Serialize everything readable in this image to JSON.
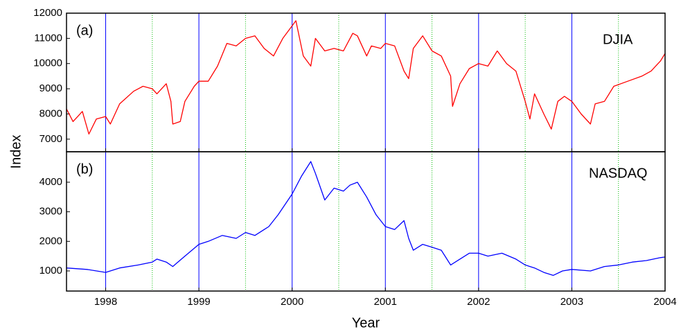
{
  "chart_data": [
    {
      "type": "line",
      "panel_label": "(a)",
      "ylabel": "Index",
      "xlim": [
        1997.58,
        2004
      ],
      "xticks": [
        1998,
        1999,
        2000,
        2001,
        2002,
        2003,
        2004
      ],
      "minor_xgrid": [
        1998.5,
        1999.5,
        2000.5,
        2001.5,
        2002.5,
        2003.5
      ],
      "grid_color": "#0000ff",
      "minor_grid_color": "#00bb00",
      "ylim": [
        6500,
        12000
      ],
      "yticks": [
        7000,
        8000,
        9000,
        10000,
        11000,
        12000
      ],
      "x": [
        1997.58,
        1997.65,
        1997.75,
        1997.82,
        1997.9,
        1998.0,
        1998.05,
        1998.15,
        1998.3,
        1998.4,
        1998.5,
        1998.55,
        1998.65,
        1998.7,
        1998.72,
        1998.8,
        1998.85,
        1998.95,
        1999.0,
        1999.1,
        1999.2,
        1999.3,
        1999.4,
        1999.5,
        1999.6,
        1999.7,
        1999.8,
        1999.9,
        2000.0,
        2000.04,
        2000.12,
        2000.2,
        2000.25,
        2000.35,
        2000.45,
        2000.55,
        2000.65,
        2000.7,
        2000.8,
        2000.85,
        2000.95,
        2001.0,
        2001.1,
        2001.2,
        2001.25,
        2001.3,
        2001.4,
        2001.5,
        2001.6,
        2001.7,
        2001.72,
        2001.8,
        2001.9,
        2002.0,
        2002.1,
        2002.2,
        2002.3,
        2002.4,
        2002.5,
        2002.55,
        2002.6,
        2002.7,
        2002.78,
        2002.85,
        2002.92,
        2003.0,
        2003.1,
        2003.2,
        2003.25,
        2003.35,
        2003.45,
        2003.6,
        2003.75,
        2003.85,
        2003.95,
        2004.0
      ],
      "series": [
        {
          "name": "DJIA",
          "color": "#ff0000",
          "values": [
            8200,
            7700,
            8100,
            7200,
            7800,
            7900,
            7600,
            8400,
            8900,
            9100,
            9000,
            8800,
            9200,
            8500,
            7600,
            7700,
            8500,
            9100,
            9300,
            9300,
            9900,
            10800,
            10700,
            11000,
            11100,
            10600,
            10300,
            11000,
            11500,
            11700,
            10300,
            9900,
            11000,
            10500,
            10600,
            10500,
            11200,
            11100,
            10300,
            10700,
            10600,
            10800,
            10700,
            9700,
            9400,
            10600,
            11100,
            10500,
            10300,
            9500,
            8300,
            9200,
            9800,
            10000,
            9900,
            10500,
            10000,
            9700,
            8500,
            7800,
            8800,
            8000,
            7400,
            8500,
            8700,
            8500,
            8000,
            7600,
            8400,
            8500,
            9100,
            9300,
            9500,
            9700,
            10100,
            10400
          ]
        }
      ]
    },
    {
      "type": "line",
      "panel_label": "(b)",
      "xlabel": "Year",
      "xlim": [
        1997.58,
        2004
      ],
      "xticks": [
        1998,
        1999,
        2000,
        2001,
        2002,
        2003,
        2004
      ],
      "minor_xgrid": [
        1998.5,
        1999.5,
        2000.5,
        2001.5,
        2002.5,
        2003.5
      ],
      "grid_color": "#0000ff",
      "minor_grid_color": "#00bb00",
      "ylim": [
        320,
        5030
      ],
      "yticks": [
        1000,
        2000,
        3000,
        4000
      ],
      "x": [
        1997.58,
        1997.8,
        1998.0,
        1998.15,
        1998.35,
        1998.5,
        1998.55,
        1998.65,
        1998.72,
        1998.85,
        1999.0,
        1999.1,
        1999.25,
        1999.4,
        1999.5,
        1999.6,
        1999.75,
        1999.85,
        2000.0,
        2000.1,
        2000.2,
        2000.25,
        2000.35,
        2000.45,
        2000.55,
        2000.62,
        2000.7,
        2000.8,
        2000.9,
        2001.0,
        2001.1,
        2001.2,
        2001.25,
        2001.3,
        2001.4,
        2001.5,
        2001.6,
        2001.7,
        2001.8,
        2001.9,
        2002.0,
        2002.1,
        2002.25,
        2002.4,
        2002.5,
        2002.6,
        2002.7,
        2002.8,
        2002.9,
        2003.0,
        2003.2,
        2003.35,
        2003.5,
        2003.65,
        2003.8,
        2003.95,
        2004.0
      ],
      "series": [
        {
          "name": "NASDAQ",
          "color": "#0000ff",
          "values": [
            1100,
            1050,
            950,
            1100,
            1200,
            1300,
            1400,
            1300,
            1150,
            1500,
            1900,
            2000,
            2200,
            2100,
            2300,
            2200,
            2500,
            2900,
            3600,
            4200,
            4700,
            4300,
            3400,
            3800,
            3700,
            3900,
            4000,
            3500,
            2900,
            2500,
            2400,
            2700,
            2100,
            1700,
            1900,
            1800,
            1700,
            1200,
            1400,
            1600,
            1600,
            1500,
            1600,
            1400,
            1200,
            1100,
            950,
            850,
            1000,
            1050,
            1000,
            1150,
            1200,
            1300,
            1350,
            1450,
            1470
          ]
        }
      ]
    }
  ]
}
